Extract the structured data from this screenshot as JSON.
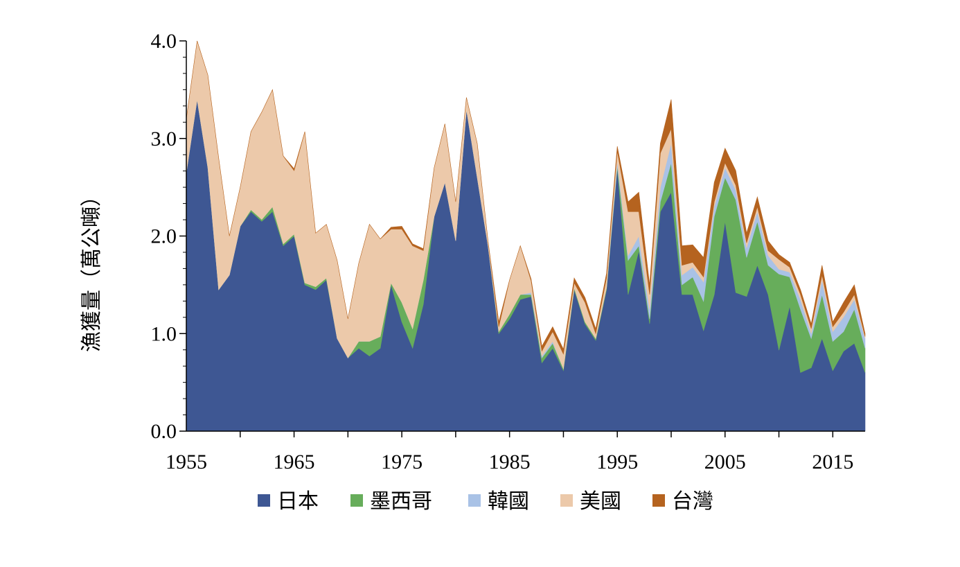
{
  "chart_data": {
    "type": "area",
    "stacked": true,
    "ylabel": "漁獲量（萬公噸）",
    "xlabel": "",
    "xlim": [
      1955,
      2018
    ],
    "ylim": [
      0,
      4
    ],
    "x_ticks": [
      1955,
      1965,
      1975,
      1985,
      1995,
      2005,
      2015
    ],
    "y_ticks": [
      "0.0",
      "1.0",
      "2.0",
      "3.0",
      "4.0"
    ],
    "y_tick_values": [
      0,
      1,
      2,
      3,
      4
    ],
    "legend_position": "bottom",
    "grid": false,
    "x": [
      1955,
      1956,
      1957,
      1958,
      1959,
      1960,
      1961,
      1962,
      1963,
      1964,
      1965,
      1966,
      1967,
      1968,
      1969,
      1970,
      1971,
      1972,
      1973,
      1974,
      1975,
      1976,
      1977,
      1978,
      1979,
      1980,
      1981,
      1982,
      1983,
      1984,
      1985,
      1986,
      1987,
      1988,
      1989,
      1990,
      1991,
      1992,
      1993,
      1994,
      1995,
      1996,
      1997,
      1998,
      1999,
      2000,
      2001,
      2002,
      2003,
      2004,
      2005,
      2006,
      2007,
      2008,
      2009,
      2010,
      2011,
      2012,
      2013,
      2014,
      2015,
      2016,
      2017,
      2018
    ],
    "series": [
      {
        "name": "日本",
        "color": "#3e5793",
        "values": [
          2.65,
          3.4,
          2.7,
          1.45,
          1.6,
          2.1,
          2.25,
          2.15,
          2.25,
          1.9,
          2.0,
          1.5,
          1.45,
          1.55,
          0.95,
          0.75,
          0.85,
          0.77,
          0.85,
          1.5,
          1.12,
          0.85,
          1.3,
          2.2,
          2.55,
          1.95,
          3.3,
          2.6,
          1.9,
          1.0,
          1.15,
          1.35,
          1.38,
          0.7,
          0.85,
          0.62,
          1.45,
          1.1,
          0.93,
          1.45,
          2.7,
          1.4,
          1.85,
          1.1,
          2.25,
          2.45,
          1.4,
          1.4,
          1.03,
          1.4,
          2.15,
          1.42,
          1.38,
          1.7,
          1.4,
          0.83,
          1.28,
          0.6,
          0.65,
          0.95,
          0.62,
          0.82,
          0.9,
          0.6
        ]
      },
      {
        "name": "墨西哥",
        "color": "#67ad5b",
        "values": [
          0,
          0,
          0,
          0,
          0,
          0,
          0.02,
          0.02,
          0.05,
          0.02,
          0.02,
          0.02,
          0.03,
          0.02,
          0,
          0,
          0.07,
          0.15,
          0.12,
          0.02,
          0.2,
          0.2,
          0.25,
          0,
          0,
          0,
          0,
          0,
          0,
          0.02,
          0.05,
          0.05,
          0.02,
          0.05,
          0.05,
          0.02,
          0.02,
          0.02,
          0.02,
          0.02,
          0.02,
          0.35,
          0.05,
          0.05,
          0.1,
          0.3,
          0.1,
          0.18,
          0.3,
          0.8,
          0.45,
          0.95,
          0.4,
          0.45,
          0.3,
          0.78,
          0.3,
          0.65,
          0.3,
          0.45,
          0.3,
          0.2,
          0.35,
          0.25
        ]
      },
      {
        "name": "韓國",
        "color": "#a9c2e6",
        "values": [
          0,
          0,
          0,
          0,
          0,
          0,
          0,
          0,
          0,
          0,
          0,
          0,
          0,
          0,
          0,
          0,
          0,
          0,
          0,
          0,
          0,
          0,
          0,
          0,
          0,
          0,
          0,
          0,
          0,
          0,
          0,
          0,
          0.02,
          0.02,
          0.02,
          0,
          0,
          0,
          0,
          0,
          0.05,
          0.05,
          0.1,
          0.1,
          0.15,
          0.2,
          0.1,
          0.1,
          0.2,
          0.1,
          0.1,
          0.1,
          0.1,
          0.1,
          0.1,
          0.05,
          0.05,
          0.1,
          0.05,
          0.15,
          0.1,
          0.15,
          0.1,
          0.1
        ]
      },
      {
        "name": "美國",
        "color": "#ecc9aa",
        "values": [
          0.55,
          0.6,
          0.95,
          1.35,
          0.4,
          0.4,
          0.8,
          1.1,
          1.2,
          0.9,
          0.65,
          1.55,
          0.55,
          0.55,
          0.8,
          0.4,
          0.8,
          1.2,
          1.0,
          0.55,
          0.75,
          0.85,
          0.3,
          0.5,
          0.6,
          0.4,
          0.12,
          0.35,
          0.05,
          0.05,
          0.35,
          0.5,
          0.12,
          0.05,
          0.1,
          0.15,
          0.05,
          0.2,
          0.05,
          0.1,
          0.1,
          0.45,
          0.25,
          0.15,
          0.35,
          0.15,
          0.1,
          0.05,
          0.05,
          0.05,
          0.05,
          0.05,
          0.05,
          0.05,
          0.05,
          0.1,
          0.05,
          0.05,
          0.05,
          0.05,
          0.05,
          0.05,
          0.05,
          0.02
        ]
      },
      {
        "name": "台灣",
        "color": "#b5631f",
        "values": [
          0,
          0,
          0,
          0,
          0,
          0,
          0,
          0,
          0,
          0,
          0.02,
          0,
          0,
          0,
          0,
          0,
          0,
          0,
          0,
          0.02,
          0.03,
          0.02,
          0.02,
          0,
          0,
          0,
          0,
          0,
          0,
          0.05,
          0,
          0,
          0.02,
          0.05,
          0.05,
          0.05,
          0.05,
          0.05,
          0.05,
          0.05,
          0.05,
          0.1,
          0.2,
          0.1,
          0.1,
          0.3,
          0.2,
          0.18,
          0.2,
          0.2,
          0.15,
          0.15,
          0.1,
          0.1,
          0.1,
          0.05,
          0.05,
          0.05,
          0.05,
          0.1,
          0.05,
          0.1,
          0.1,
          0.03
        ]
      }
    ]
  }
}
